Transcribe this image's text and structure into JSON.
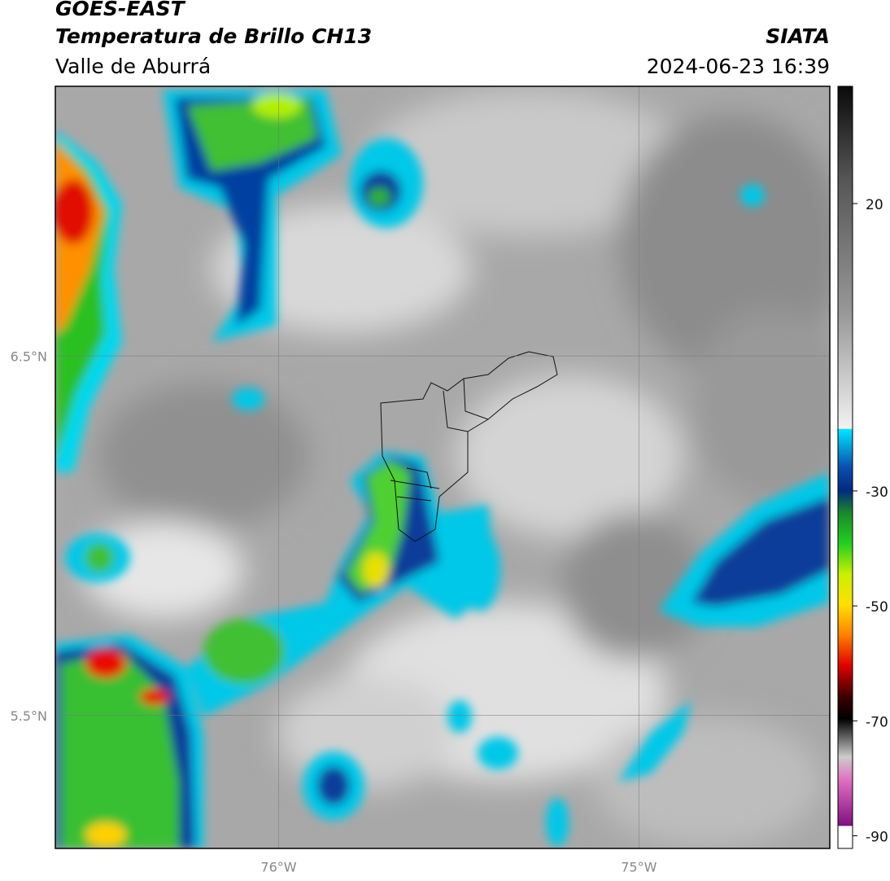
{
  "header": {
    "title": "GOES-EAST",
    "subtitle": "Temperatura de Brillo CH13",
    "region": "Valle de Aburrá",
    "source": "SIATA",
    "datetime": "2024-06-23 16:39"
  },
  "map": {
    "latlim": [
      5.13,
      7.25
    ],
    "lonlim": [
      -76.62,
      -74.47
    ],
    "latticks": [
      {
        "value": 6.5,
        "label": "6.5°N"
      },
      {
        "value": 5.5,
        "label": "5.5°N"
      }
    ],
    "lonticks": [
      {
        "value": -76,
        "label": "76°W"
      },
      {
        "value": -75,
        "label": "75°W"
      }
    ],
    "colorbar": {
      "lim": [
        -92.2,
        40.4
      ],
      "ticks": [
        20,
        -30,
        -50,
        -70,
        -90
      ]
    }
  }
}
